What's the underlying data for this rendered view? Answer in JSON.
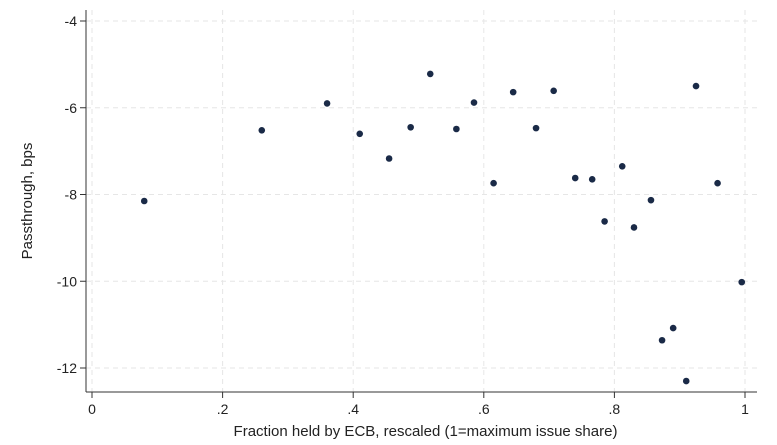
{
  "chart_data": {
    "type": "scatter",
    "xlabel": "Fraction held by ECB, rescaled (1=maximum issue share)",
    "ylabel": "Passthrough, bps",
    "xlim": [
      0,
      1
    ],
    "ylim": [
      -12.5,
      -3.8
    ],
    "xticks": [
      0,
      0.2,
      0.4,
      0.6,
      0.8,
      1
    ],
    "xtick_labels": [
      "0",
      ".2",
      ".4",
      ".6",
      ".8",
      "1"
    ],
    "yticks": [
      -4,
      -6,
      -8,
      -10,
      -12
    ],
    "ytick_labels": [
      "-4",
      "-6",
      "-8",
      "-10",
      "-12"
    ],
    "grid": true,
    "marker_color": "#1a2a47",
    "points": [
      {
        "x": 0.08,
        "y": -8.15
      },
      {
        "x": 0.26,
        "y": -6.52
      },
      {
        "x": 0.36,
        "y": -5.9
      },
      {
        "x": 0.41,
        "y": -6.6
      },
      {
        "x": 0.455,
        "y": -7.17
      },
      {
        "x": 0.488,
        "y": -6.45
      },
      {
        "x": 0.518,
        "y": -5.22
      },
      {
        "x": 0.558,
        "y": -6.49
      },
      {
        "x": 0.585,
        "y": -5.88
      },
      {
        "x": 0.615,
        "y": -7.74
      },
      {
        "x": 0.645,
        "y": -5.64
      },
      {
        "x": 0.68,
        "y": -6.47
      },
      {
        "x": 0.707,
        "y": -5.61
      },
      {
        "x": 0.74,
        "y": -7.62
      },
      {
        "x": 0.766,
        "y": -7.65
      },
      {
        "x": 0.785,
        "y": -8.62
      },
      {
        "x": 0.812,
        "y": -7.35
      },
      {
        "x": 0.83,
        "y": -8.76
      },
      {
        "x": 0.856,
        "y": -8.13
      },
      {
        "x": 0.873,
        "y": -11.36
      },
      {
        "x": 0.89,
        "y": -11.08
      },
      {
        "x": 0.91,
        "y": -12.3
      },
      {
        "x": 0.925,
        "y": -5.5
      },
      {
        "x": 0.958,
        "y": -7.74
      },
      {
        "x": 0.995,
        "y": -10.02
      }
    ]
  }
}
